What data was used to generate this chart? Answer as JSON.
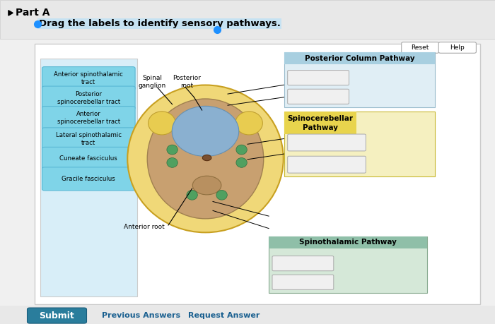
{
  "bg_color": "#f0f0f0",
  "page_bg": "#ffffff",
  "title_text": "Part A",
  "instruction_text": "Drag the labels to identify sensory pathways.",
  "left_labels": [
    "Anterior spinothalamic\ntract",
    "Posterior\nspinocerebellar tract",
    "Anterior\nspinocerebellar tract",
    "Lateral spinothalamic\ntract",
    "Cuneate fasciculus",
    "Gracile fasciculus"
  ],
  "label_box_color": "#7fd4e8",
  "label_box_edge": "#5ab8d4",
  "submit_color": "#2a7d9c",
  "submit_text": "Submit",
  "reset_text": "Reset",
  "help_text": "Help",
  "prev_answers_text": "Previous Answers",
  "request_answer_text": "Request Answer",
  "pc_title": "Posterior Column Pathway",
  "pc_title_bg": "#a8cfe0",
  "pc_section_bg": "#e0eef5",
  "sc_title": "Spinocerebellar\nPathway",
  "sc_title_bg": "#e8d44d",
  "sc_section_bg": "#f5f0c0",
  "st_title": "Spinothalamic Pathway",
  "st_title_bg": "#8fbfa8",
  "st_section_bg": "#d5e8d8",
  "spinal_ganglion_label": "Spinal\nganglion",
  "posterior_root_label": "Posterior\nroot",
  "anterior_root_label": "Anterior root"
}
